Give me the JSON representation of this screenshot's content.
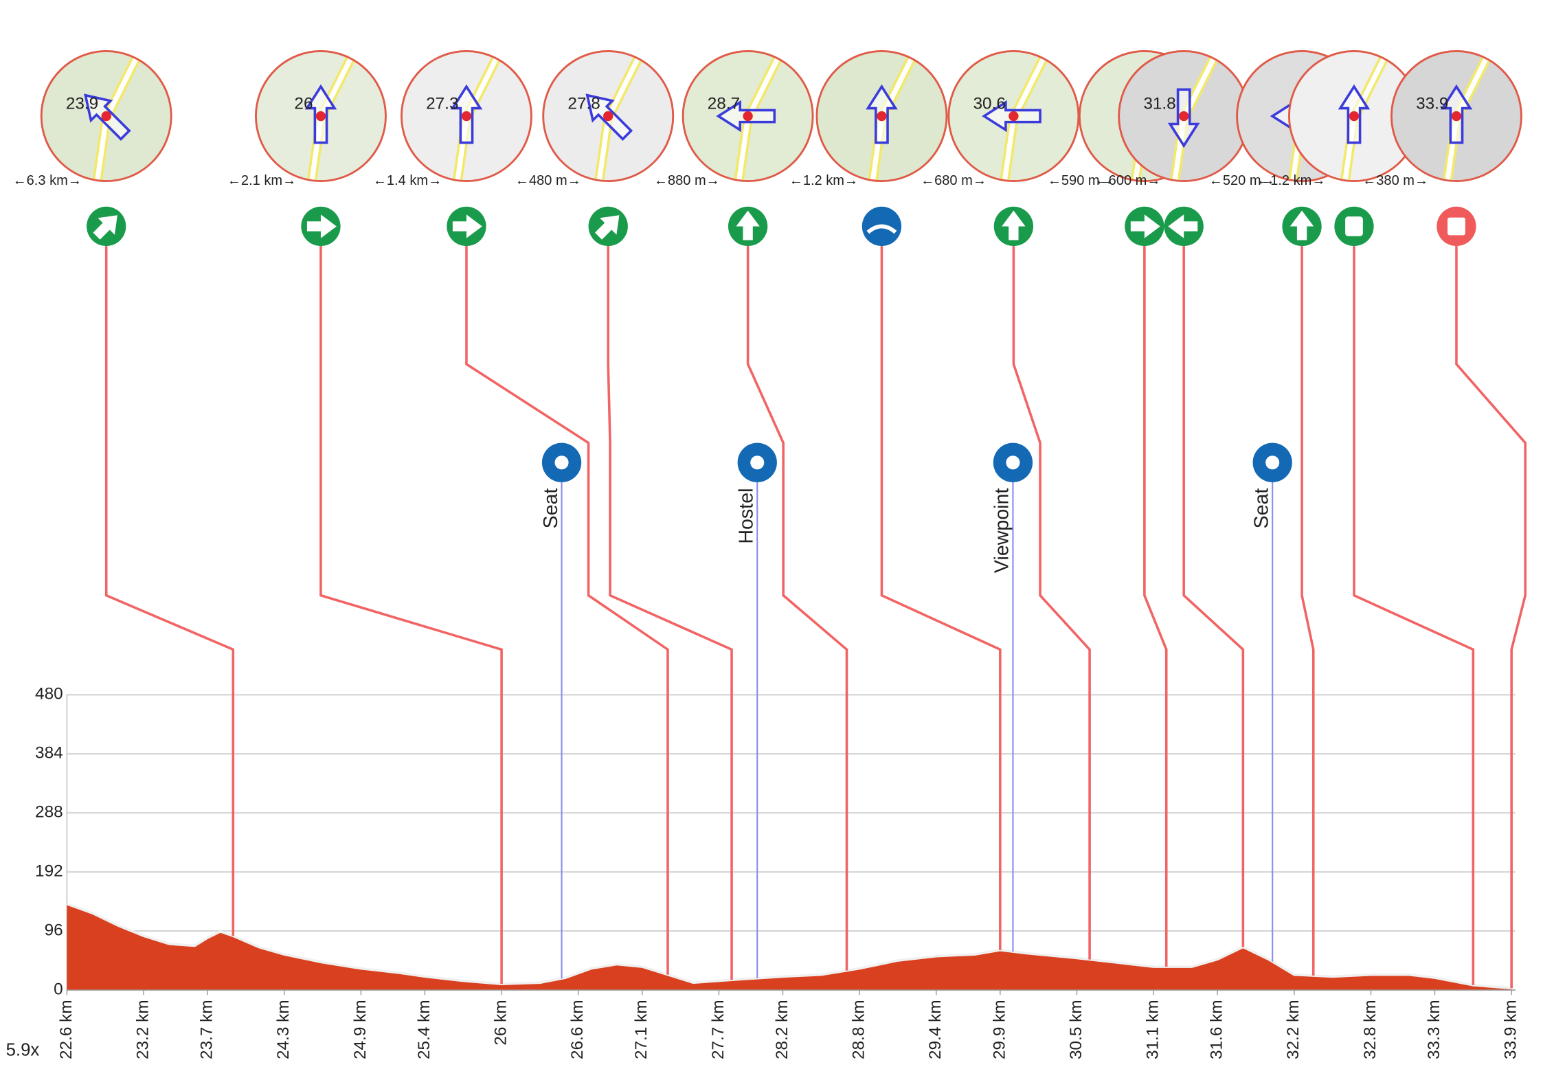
{
  "chart_data": {
    "type": "area",
    "color": "#d9401f",
    "grid": true,
    "zoom": "5.9x",
    "xlim": [
      22.6,
      33.9
    ],
    "ylim": [
      0,
      480
    ],
    "yticks": [
      0,
      96,
      192,
      288,
      384,
      480
    ],
    "xticks": [
      {
        "value": 22.6,
        "label": "22.6 km"
      },
      {
        "value": 23.2,
        "label": "23.2 km"
      },
      {
        "value": 23.7,
        "label": "23.7 km"
      },
      {
        "value": 24.3,
        "label": "24.3 km"
      },
      {
        "value": 24.9,
        "label": "24.9 km"
      },
      {
        "value": 25.4,
        "label": "25.4 km"
      },
      {
        "value": 26,
        "label": "26 km"
      },
      {
        "value": 26.6,
        "label": "26.6 km"
      },
      {
        "value": 27.1,
        "label": "27.1 km"
      },
      {
        "value": 27.7,
        "label": "27.7 km"
      },
      {
        "value": 28.2,
        "label": "28.2 km"
      },
      {
        "value": 28.8,
        "label": "28.8 km"
      },
      {
        "value": 29.4,
        "label": "29.4 km"
      },
      {
        "value": 29.9,
        "label": "29.9 km"
      },
      {
        "value": 30.5,
        "label": "30.5 km"
      },
      {
        "value": 31.1,
        "label": "31.1 km"
      },
      {
        "value": 31.6,
        "label": "31.6 km"
      },
      {
        "value": 32.2,
        "label": "32.2 km"
      },
      {
        "value": 32.8,
        "label": "32.8 km"
      },
      {
        "value": 33.3,
        "label": "33.3 km"
      },
      {
        "value": 33.9,
        "label": "33.9 km"
      }
    ],
    "x": [
      22.6,
      22.8,
      23.0,
      23.2,
      23.4,
      23.6,
      23.7,
      23.8,
      23.9,
      24.1,
      24.3,
      24.6,
      24.9,
      25.2,
      25.4,
      25.7,
      26.0,
      26.3,
      26.5,
      26.7,
      26.9,
      27.1,
      27.3,
      27.5,
      27.7,
      27.9,
      28.2,
      28.5,
      28.8,
      29.1,
      29.4,
      29.7,
      29.9,
      30.1,
      30.5,
      30.8,
      31.1,
      31.4,
      31.6,
      31.8,
      32.0,
      32.2,
      32.5,
      32.8,
      33.1,
      33.3,
      33.6,
      33.9
    ],
    "values": [
      140,
      125,
      105,
      88,
      75,
      72,
      85,
      95,
      88,
      70,
      58,
      45,
      35,
      28,
      22,
      15,
      10,
      12,
      20,
      35,
      42,
      38,
      25,
      12,
      15,
      18,
      22,
      25,
      35,
      48,
      55,
      58,
      65,
      60,
      52,
      45,
      38,
      38,
      50,
      70,
      50,
      25,
      22,
      25,
      25,
      20,
      8,
      3
    ],
    "waypoints": {
      "km": [
        23.9,
        26,
        27.3,
        27.8,
        28.7,
        29.9,
        30.6,
        31.2,
        31.8,
        32.35,
        33.6,
        33.9
      ],
      "km_printed": [
        true,
        true,
        true,
        true,
        true,
        false,
        true,
        false,
        true,
        false,
        false,
        true
      ],
      "distances": [
        "←6.3 km→",
        "←2.1 km→",
        "←1.4 km→",
        "←480 m→",
        "←880 m→",
        "←1.2 km→",
        "←680 m→",
        "←590 m→",
        "←600 m→",
        "←520 m→",
        "←1.2 km→",
        "←380 m→"
      ]
    },
    "pois": {
      "km": [
        26.47,
        28.0,
        30.0,
        32.03
      ],
      "labels": [
        "Seat",
        "Hostel",
        "Viewpoint",
        "Seat"
      ]
    }
  }
}
